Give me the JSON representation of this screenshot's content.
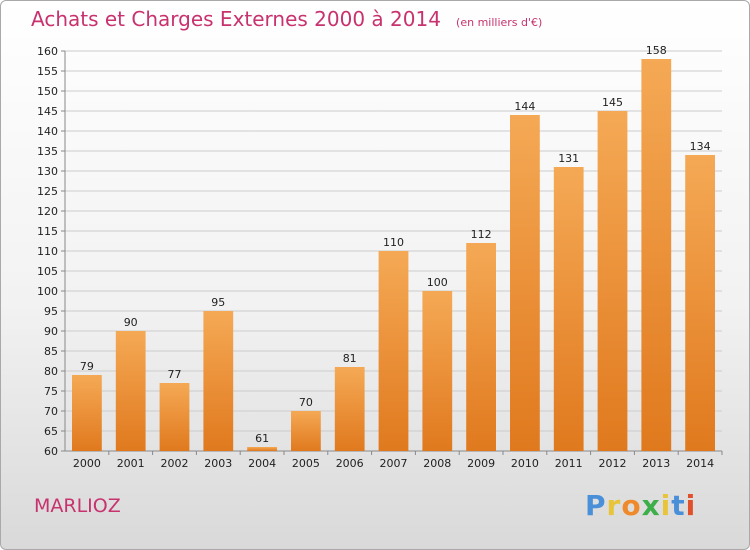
{
  "header": {
    "title": "Achats et Charges Externes 2000 à 2014",
    "unit": "(en milliers d'€)"
  },
  "footer": {
    "commune": "MARLIOZ",
    "logo_letters": [
      "P",
      "r",
      "o",
      "x",
      "i",
      "t",
      "i"
    ],
    "logo_colors": [
      "#4a90d9",
      "#e8c43a",
      "#ef8a2c",
      "#3cae4a",
      "#e8c43a",
      "#4a90d9",
      "#e0502a"
    ]
  },
  "colors": {
    "bar_top": "#f5a955",
    "bar_bottom": "#e0791e",
    "grid": "#cccccc",
    "axis": "#888888",
    "title": "#c8326e"
  },
  "chart_data": {
    "type": "bar",
    "title": "Achats et Charges Externes 2000 à 2014",
    "subtitle": "(en milliers d'€)",
    "categories": [
      "2000",
      "2001",
      "2002",
      "2003",
      "2004",
      "2005",
      "2006",
      "2007",
      "2008",
      "2009",
      "2010",
      "2011",
      "2012",
      "2013",
      "2014"
    ],
    "values": [
      79,
      90,
      77,
      95,
      61,
      70,
      81,
      110,
      100,
      112,
      144,
      131,
      145,
      158,
      134
    ],
    "ylim": [
      60,
      160
    ],
    "yticks": [
      60,
      65,
      70,
      75,
      80,
      85,
      90,
      95,
      100,
      105,
      110,
      115,
      120,
      125,
      130,
      135,
      140,
      145,
      150,
      155,
      160
    ],
    "grid": true,
    "data_labels": true,
    "xlabel": "",
    "ylabel": ""
  }
}
